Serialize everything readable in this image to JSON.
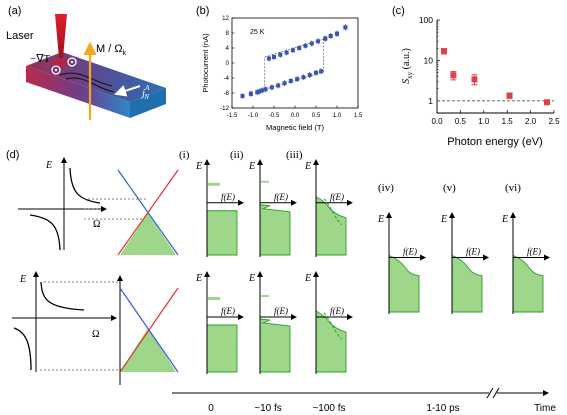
{
  "panel_labels": {
    "a": "(a)",
    "b": "(b)",
    "c": "(c)",
    "d": "(d)"
  },
  "panel_a": {
    "laser_label": "Laser",
    "gradient_label": "−∇T",
    "moment_label": "M / Ω",
    "moment_subscript": "k",
    "current_label": "j",
    "current_superscript": "A",
    "current_subscript": "N",
    "colors": {
      "hot": "#b8294a",
      "cold": "#2f86c8",
      "top": "#6b4a8e",
      "beam": "#c8102e",
      "arrow": "#f5a623"
    }
  },
  "panel_b": {
    "annotation": "25 K",
    "chart_data": {
      "type": "scatter",
      "title": "",
      "xlabel": "Magnetic field (T)",
      "ylabel": "Photocurrent (nA)",
      "xlim": [
        -1.5,
        1.5
      ],
      "ylim": [
        -12,
        12
      ],
      "xticks": [
        "-1.5",
        "-1.0",
        "-0.5",
        "0.0",
        "0.5",
        "1.0",
        "1.5"
      ],
      "yticks": [
        "12",
        "8",
        "4",
        "0",
        "-4",
        "-8",
        "-12"
      ],
      "xtick_values": [
        -1.5,
        -1.0,
        -0.5,
        0.0,
        0.5,
        1.0,
        1.5
      ],
      "ytick_values": [
        12,
        8,
        4,
        0,
        -4,
        -8,
        -12
      ],
      "series": [
        {
          "x": [
            -1.25,
            -1.05,
            -0.85,
            -0.7,
            -0.55,
            -0.4,
            -0.25,
            -0.1,
            0.05,
            0.2,
            0.35,
            0.5,
            0.62,
            0.72,
            0.85,
            1.0,
            1.2
          ],
          "y": [
            -8.8,
            -8.2,
            -7.6,
            -7.0,
            -6.5,
            -6.0,
            -5.4,
            -4.8,
            -4.3,
            -3.8,
            -3.2,
            -2.6,
            -2.2,
            6.5,
            7.2,
            7.8,
            9.5
          ],
          "err": [
            0.8,
            0.8,
            0.8,
            0.8,
            0.8,
            0.8,
            0.8,
            0.8,
            0.8,
            0.8,
            0.8,
            0.8,
            0.8,
            0.8,
            0.8,
            0.8,
            0.8
          ]
        },
        {
          "x": [
            1.2,
            1.0,
            0.85,
            0.72,
            0.55,
            0.4,
            0.25,
            0.1,
            -0.05,
            -0.2,
            -0.35,
            -0.5,
            -0.62,
            -0.78,
            -0.9,
            -1.05
          ],
          "y": [
            9.5,
            7.8,
            7.2,
            6.5,
            5.8,
            5.2,
            4.6,
            4.0,
            3.4,
            2.8,
            2.2,
            1.6,
            1.2,
            -7.3,
            -7.8,
            -8.2
          ],
          "err": [
            0.8,
            0.8,
            0.8,
            0.8,
            0.8,
            0.8,
            0.8,
            0.8,
            0.8,
            0.8,
            0.8,
            0.8,
            0.8,
            0.8,
            0.8,
            0.8
          ]
        }
      ],
      "marker_color": "#3a54b4",
      "guide_lines": "dashed hysteresis rectangle"
    }
  },
  "panel_c": {
    "chart_data": {
      "type": "scatter",
      "title": "",
      "xlabel": "Photon energy (eV)",
      "ylabel": "S",
      "ylabel_subscript": "xy",
      "ylabel_unit": " (a.u.)",
      "xlim": [
        0,
        2.5
      ],
      "ylim": [
        0.5,
        100
      ],
      "yscale": "log",
      "xticks": [
        "0.0",
        "0.5",
        "1.0",
        "1.5",
        "2.0",
        "2.5"
      ],
      "xtick_values": [
        0.0,
        0.5,
        1.0,
        1.5,
        2.0,
        2.5
      ],
      "yticks": [
        "1",
        "10",
        "100"
      ],
      "ytick_values": [
        1,
        10,
        100
      ],
      "x": [
        0.15,
        0.35,
        0.8,
        1.55,
        2.35
      ],
      "y": [
        17,
        4.3,
        3.4,
        1.35,
        0.92
      ],
      "err_lo": [
        14.5,
        3.3,
        2.5,
        1.15,
        0.85
      ],
      "err_hi": [
        19.5,
        5.3,
        4.4,
        1.55,
        0.99
      ],
      "reference_line": 1,
      "marker_color": "#e0404a"
    }
  },
  "panel_d": {
    "axis_E": "E",
    "axis_Omega": "Ω",
    "axis_fE": "f(E)",
    "stage_labels": [
      "(i)",
      "(ii)",
      "(iii)",
      "(iv)",
      "(v)",
      "(vi)"
    ],
    "time_labels": [
      "0",
      "~10 fs",
      "~100 fs",
      "1-10 ps"
    ],
    "time_axis_label": "Time",
    "colors": {
      "fill": "#9ed68a",
      "line": "#2f9e2f",
      "blue": "#2f5fcf",
      "red": "#e23030"
    }
  }
}
